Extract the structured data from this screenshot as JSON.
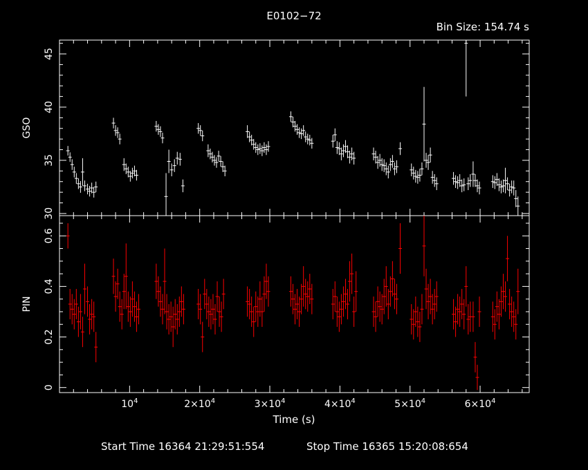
{
  "title": "E0102−72",
  "bin_size_text": "Bin Size:  154.74 s",
  "footer": {
    "start_time": "Start Time 16364 21:29:51:554",
    "stop_time": "Stop Time 16365 15:20:08:654"
  },
  "colors": {
    "background": "#000000",
    "axes": "#ffffff",
    "gso": "#ffffff",
    "pin": "#ff0000"
  },
  "chart_data": [
    {
      "type": "scatter",
      "title": "E0102−72",
      "ylabel": "GSO",
      "xlabel": "",
      "xlim": [
        0,
        67000
      ],
      "ylim": [
        29.8,
        46.3
      ],
      "yticks": [
        30,
        35,
        40,
        45
      ],
      "x_tick_labels_shown": false,
      "error_bars": true,
      "color": "#ffffff",
      "segments": [
        {
          "x": [
            1200,
            1500,
            1800,
            2100,
            2400,
            2700,
            3000,
            3300,
            3600,
            4000,
            4300,
            4600,
            4900,
            5200
          ],
          "y": [
            35.9,
            35.3,
            34.6,
            33.9,
            33.3,
            32.8,
            32.5,
            33.9,
            32.6,
            32.3,
            32.1,
            32.4,
            32.0,
            32.5
          ],
          "err": [
            0.45,
            0.45,
            0.5,
            0.5,
            0.5,
            0.5,
            0.55,
            1.3,
            0.5,
            0.5,
            0.5,
            0.5,
            0.5,
            0.5
          ]
        },
        {
          "x": [
            7700,
            8000,
            8300,
            8600,
            9200,
            9500,
            9800,
            10100,
            10400,
            10700,
            11000
          ],
          "y": [
            38.5,
            37.8,
            37.6,
            37.0,
            34.6,
            34.2,
            33.9,
            33.5,
            33.8,
            34.0,
            33.6
          ],
          "err": [
            0.5,
            0.5,
            0.5,
            0.5,
            0.6,
            0.5,
            0.5,
            0.5,
            0.5,
            0.5,
            0.5
          ]
        },
        {
          "x": [
            13800,
            14100,
            14400,
            14700,
            15200,
            15600,
            16000,
            16400,
            16800,
            17200,
            17600
          ],
          "y": [
            38.2,
            37.9,
            37.7,
            37.1,
            31.6,
            34.9,
            34.1,
            34.5,
            35.2,
            35.1,
            32.6
          ],
          "err": [
            0.5,
            0.5,
            0.5,
            0.5,
            2.2,
            1.1,
            0.6,
            0.6,
            0.6,
            0.6,
            0.6
          ]
        },
        {
          "x": [
            19800,
            20100,
            20400,
            21200,
            21500,
            21800,
            22100,
            22400,
            22700,
            23000,
            23300,
            23600
          ],
          "y": [
            38.0,
            37.8,
            37.3,
            35.9,
            35.6,
            35.3,
            35.0,
            34.8,
            35.4,
            34.9,
            34.4,
            34.0
          ],
          "err": [
            0.5,
            0.5,
            0.5,
            0.6,
            0.5,
            0.5,
            0.5,
            0.5,
            0.5,
            0.5,
            0.5,
            0.5
          ]
        },
        {
          "x": [
            26800,
            27100,
            27400,
            27700,
            28000,
            28300,
            28600,
            28900,
            29200,
            29500,
            29800
          ],
          "y": [
            37.7,
            37.2,
            36.9,
            36.5,
            36.2,
            36.0,
            36.1,
            35.9,
            36.2,
            36.0,
            36.3
          ],
          "err": [
            0.6,
            0.5,
            0.5,
            0.5,
            0.5,
            0.5,
            0.5,
            0.5,
            0.5,
            0.5,
            0.5
          ]
        },
        {
          "x": [
            33000,
            33300,
            33600,
            33900,
            34200,
            34500,
            34800,
            35100,
            35400,
            35700,
            36000
          ],
          "y": [
            39.1,
            38.6,
            38.2,
            37.9,
            37.6,
            37.5,
            37.8,
            37.2,
            37.0,
            36.9,
            36.6
          ],
          "err": [
            0.5,
            0.5,
            0.5,
            0.5,
            0.5,
            0.5,
            0.5,
            0.5,
            0.5,
            0.5,
            0.5
          ]
        },
        {
          "x": [
            39000,
            39300,
            39600,
            39900,
            40200,
            40500,
            40800,
            41100,
            41400,
            41700,
            42000
          ],
          "y": [
            36.8,
            37.4,
            36.2,
            36.1,
            35.6,
            35.9,
            36.3,
            35.8,
            35.3,
            35.6,
            35.2
          ],
          "err": [
            0.6,
            0.6,
            0.6,
            0.6,
            0.6,
            0.6,
            0.6,
            0.6,
            0.6,
            0.6,
            0.6
          ]
        },
        {
          "x": [
            44800,
            45100,
            45400,
            45700,
            46000,
            46300,
            46600,
            46900,
            47200,
            47500,
            47800,
            48100,
            48600
          ],
          "y": [
            35.6,
            35.3,
            34.8,
            35.0,
            34.6,
            34.5,
            34.2,
            33.9,
            34.6,
            34.9,
            34.2,
            34.4,
            36.1
          ],
          "err": [
            0.6,
            0.6,
            0.6,
            0.6,
            0.6,
            0.6,
            0.6,
            0.6,
            0.6,
            0.6,
            0.6,
            0.6,
            0.6
          ]
        },
        {
          "x": [
            50200,
            50500,
            50800,
            51100,
            51400,
            51700,
            52000,
            52300,
            52600,
            52900,
            53200,
            53500,
            53800
          ],
          "y": [
            34.1,
            33.8,
            33.5,
            33.4,
            33.6,
            34.2,
            38.4,
            35.0,
            34.8,
            35.5,
            33.4,
            33.1,
            32.8
          ],
          "err": [
            0.6,
            0.6,
            0.6,
            0.6,
            0.6,
            0.6,
            3.5,
            0.7,
            0.7,
            0.7,
            0.6,
            0.6,
            0.6
          ]
        },
        {
          "x": [
            56200,
            56500,
            56800,
            57100,
            57400,
            57700,
            58000,
            58300,
            58600,
            59000,
            59300,
            59600,
            59900
          ],
          "y": [
            33.3,
            33.0,
            32.9,
            33.1,
            32.6,
            32.7,
            46.0,
            32.8,
            33.1,
            33.7,
            33.1,
            32.6,
            32.4
          ],
          "err": [
            0.6,
            0.6,
            0.6,
            0.6,
            0.6,
            0.6,
            5.0,
            0.6,
            0.6,
            1.2,
            0.6,
            0.6,
            0.6
          ]
        },
        {
          "x": [
            61800,
            62100,
            62400,
            62700,
            63000,
            63300,
            63600,
            63900,
            64200,
            64500,
            64800,
            65100,
            65400
          ],
          "y": [
            33.0,
            32.9,
            33.2,
            32.7,
            32.5,
            32.6,
            33.1,
            32.8,
            32.2,
            32.5,
            32.4,
            31.4,
            30.7
          ],
          "err": [
            0.6,
            0.6,
            0.6,
            0.6,
            0.6,
            0.6,
            1.2,
            0.6,
            0.6,
            0.6,
            0.7,
            0.8,
            0.9
          ]
        }
      ]
    },
    {
      "type": "scatter",
      "ylabel": "PIN",
      "xlabel": "Time (s)",
      "xlim": [
        0,
        67000
      ],
      "ylim": [
        -0.02,
        0.68
      ],
      "yticks": [
        0,
        0.2,
        0.4,
        0.6
      ],
      "xticks": [
        10000,
        20000,
        30000,
        40000,
        50000,
        60000
      ],
      "error_bars": true,
      "color": "#ff0000",
      "segments": [
        {
          "x": [
            1200,
            1500,
            1800,
            2100,
            2400,
            2700,
            3000,
            3300,
            3600,
            4000,
            4300,
            4600,
            4900,
            5200
          ],
          "y": [
            0.6,
            0.33,
            0.31,
            0.29,
            0.33,
            0.26,
            0.3,
            0.22,
            0.39,
            0.34,
            0.27,
            0.29,
            0.28,
            0.16
          ],
          "err": [
            0.05,
            0.06,
            0.06,
            0.06,
            0.06,
            0.06,
            0.07,
            0.06,
            0.1,
            0.06,
            0.06,
            0.06,
            0.06,
            0.06
          ]
        },
        {
          "x": [
            7700,
            8000,
            8300,
            8600,
            8900,
            9200,
            9500,
            9800,
            10100,
            10400,
            10700,
            11000,
            11300
          ],
          "y": [
            0.44,
            0.36,
            0.41,
            0.32,
            0.29,
            0.38,
            0.44,
            0.32,
            0.3,
            0.35,
            0.32,
            0.28,
            0.31
          ],
          "err": [
            0.07,
            0.06,
            0.06,
            0.06,
            0.06,
            0.07,
            0.13,
            0.06,
            0.06,
            0.07,
            0.06,
            0.06,
            0.06
          ]
        },
        {
          "x": [
            13800,
            14100,
            14400,
            14700,
            15000,
            15300,
            15600,
            15900,
            16200,
            16500,
            16800,
            17100,
            17400,
            17700
          ],
          "y": [
            0.42,
            0.38,
            0.34,
            0.31,
            0.42,
            0.3,
            0.27,
            0.28,
            0.24,
            0.29,
            0.27,
            0.3,
            0.34,
            0.31
          ],
          "err": [
            0.07,
            0.06,
            0.06,
            0.06,
            0.13,
            0.07,
            0.06,
            0.06,
            0.08,
            0.06,
            0.06,
            0.06,
            0.06,
            0.06
          ]
        },
        {
          "x": [
            19800,
            20100,
            20400,
            20700,
            21000,
            21300,
            21600,
            21900,
            22200,
            22500,
            22800,
            23100,
            23400
          ],
          "y": [
            0.33,
            0.31,
            0.2,
            0.37,
            0.33,
            0.3,
            0.29,
            0.31,
            0.27,
            0.36,
            0.3,
            0.28,
            0.37
          ],
          "err": [
            0.06,
            0.06,
            0.06,
            0.06,
            0.06,
            0.06,
            0.06,
            0.06,
            0.06,
            0.06,
            0.06,
            0.06,
            0.06
          ]
        },
        {
          "x": [
            26800,
            27100,
            27400,
            27700,
            28000,
            28300,
            28600,
            28900,
            29200,
            29500,
            29800
          ],
          "y": [
            0.34,
            0.33,
            0.3,
            0.26,
            0.32,
            0.3,
            0.35,
            0.3,
            0.37,
            0.42,
            0.38
          ],
          "err": [
            0.06,
            0.06,
            0.06,
            0.06,
            0.06,
            0.06,
            0.07,
            0.06,
            0.07,
            0.07,
            0.06
          ]
        },
        {
          "x": [
            33000,
            33300,
            33600,
            33900,
            34200,
            34500,
            34800,
            35100,
            35400,
            35700,
            36000
          ],
          "y": [
            0.38,
            0.35,
            0.31,
            0.33,
            0.3,
            0.35,
            0.4,
            0.37,
            0.36,
            0.39,
            0.35
          ],
          "err": [
            0.06,
            0.06,
            0.06,
            0.06,
            0.06,
            0.06,
            0.08,
            0.06,
            0.06,
            0.06,
            0.06
          ]
        },
        {
          "x": [
            39000,
            39300,
            39600,
            39900,
            40200,
            40500,
            40800,
            41100,
            41400,
            41700,
            42000,
            42300
          ],
          "y": [
            0.33,
            0.36,
            0.3,
            0.28,
            0.31,
            0.34,
            0.37,
            0.33,
            0.42,
            0.45,
            0.3,
            0.38
          ],
          "err": [
            0.06,
            0.06,
            0.06,
            0.06,
            0.06,
            0.06,
            0.06,
            0.06,
            0.08,
            0.08,
            0.06,
            0.08
          ]
        },
        {
          "x": [
            44800,
            45100,
            45400,
            45700,
            46000,
            46300,
            46600,
            46900,
            47200,
            47500,
            47800,
            48100,
            48600
          ],
          "y": [
            0.3,
            0.28,
            0.34,
            0.32,
            0.31,
            0.36,
            0.4,
            0.33,
            0.38,
            0.43,
            0.37,
            0.35,
            0.55
          ],
          "err": [
            0.06,
            0.06,
            0.06,
            0.06,
            0.06,
            0.07,
            0.08,
            0.06,
            0.06,
            0.07,
            0.06,
            0.06,
            0.1
          ]
        },
        {
          "x": [
            50200,
            50500,
            50800,
            51100,
            51400,
            51700,
            52000,
            52300,
            52600,
            52900,
            53200,
            53500,
            53800
          ],
          "y": [
            0.27,
            0.25,
            0.3,
            0.26,
            0.24,
            0.31,
            0.56,
            0.39,
            0.34,
            0.36,
            0.31,
            0.33,
            0.36
          ],
          "err": [
            0.06,
            0.06,
            0.06,
            0.06,
            0.06,
            0.06,
            0.12,
            0.08,
            0.07,
            0.07,
            0.06,
            0.06,
            0.06
          ]
        },
        {
          "x": [
            56200,
            56500,
            56800,
            57100,
            57400,
            57700,
            58000,
            58300,
            58600,
            59000,
            59300,
            59600,
            59900
          ],
          "y": [
            0.29,
            0.26,
            0.31,
            0.3,
            0.33,
            0.29,
            0.4,
            0.27,
            0.28,
            0.28,
            0.12,
            0.04,
            0.3
          ],
          "err": [
            0.06,
            0.06,
            0.06,
            0.06,
            0.06,
            0.06,
            0.08,
            0.06,
            0.06,
            0.06,
            0.06,
            0.05,
            0.06
          ]
        },
        {
          "x": [
            61800,
            62100,
            62400,
            62700,
            63000,
            63300,
            63600,
            63900,
            64200,
            64500,
            64800,
            65100,
            65400
          ],
          "y": [
            0.28,
            0.25,
            0.32,
            0.29,
            0.34,
            0.38,
            0.36,
            0.51,
            0.33,
            0.3,
            0.28,
            0.25,
            0.38
          ],
          "err": [
            0.06,
            0.06,
            0.06,
            0.06,
            0.06,
            0.07,
            0.06,
            0.09,
            0.06,
            0.06,
            0.06,
            0.06,
            0.09
          ]
        }
      ]
    }
  ]
}
